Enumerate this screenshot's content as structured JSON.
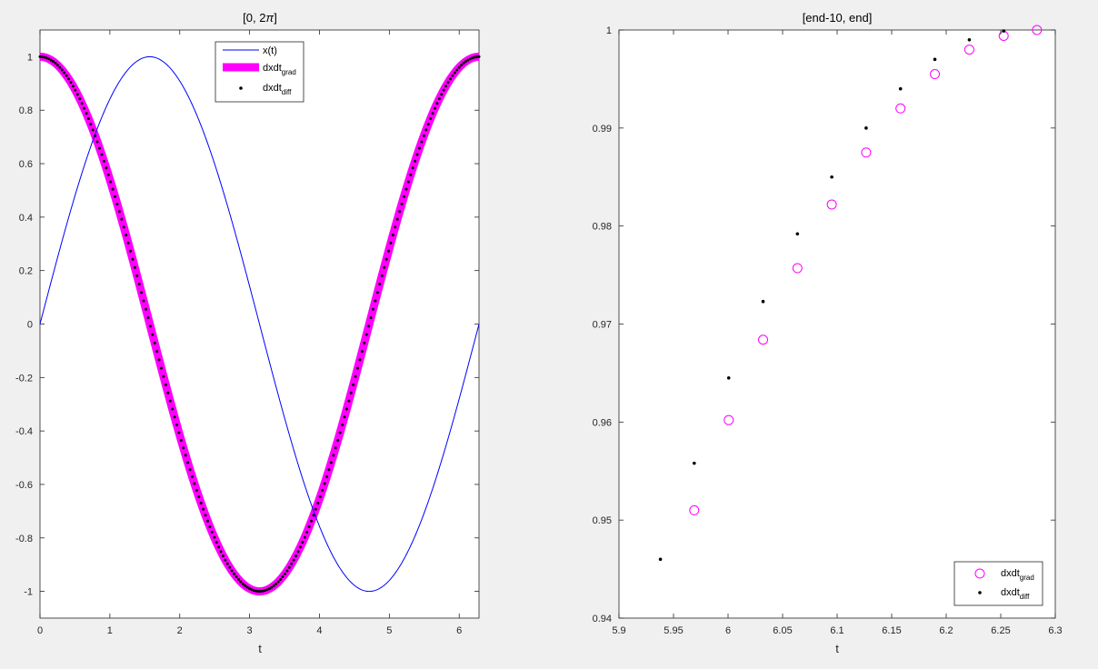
{
  "figure": {
    "background": "#f0f0f0"
  },
  "chart_data": [
    {
      "type": "line",
      "title": "[0, 2π]",
      "title_prefix": "[0, 2",
      "title_pi": "π",
      "title_suffix": "]",
      "xlabel": "t",
      "ylabel": "",
      "xlim": [
        0,
        6.2832
      ],
      "ylim": [
        -1.1,
        1.1
      ],
      "xticks": [
        0,
        1,
        2,
        3,
        4,
        5,
        6
      ],
      "yticks": [
        -1,
        -0.8,
        -0.6,
        -0.4,
        -0.2,
        0,
        0.2,
        0.4,
        0.6,
        0.8,
        1
      ],
      "ytick_labels": [
        "-1",
        "-0.8",
        "-0.6",
        "-0.4",
        "-0.2",
        "0",
        "0.2",
        "0.4",
        "0.6",
        "0.8",
        "1"
      ],
      "grid": false,
      "legend_position": "top-center",
      "series": [
        {
          "name": "x(t)",
          "function": "sin(t)",
          "style": "thin-line",
          "color": "#0000ff",
          "x": [
            0,
            0.785,
            1.571,
            2.356,
            3.142,
            3.927,
            4.712,
            5.498,
            6.283
          ],
          "y": [
            0,
            0.707,
            1,
            0.707,
            0,
            -0.707,
            -1,
            -0.707,
            0
          ]
        },
        {
          "name": "dxdt",
          "name_sub": "grad",
          "function": "cos(t)",
          "style": "thick-line",
          "color": "#ff00ff",
          "x": [
            0,
            0.785,
            1.571,
            2.356,
            3.142,
            3.927,
            4.712,
            5.498,
            6.283
          ],
          "y": [
            1,
            0.707,
            0,
            -0.707,
            -1,
            -0.707,
            0,
            0.707,
            1
          ]
        },
        {
          "name": "dxdt",
          "name_sub": "diff",
          "function": "cos(t)",
          "style": "dots",
          "color": "#000000",
          "x": [
            0,
            0.785,
            1.571,
            2.356,
            3.142,
            3.927,
            4.712,
            5.498,
            6.283
          ],
          "y": [
            1,
            0.707,
            0,
            -0.707,
            -1,
            -0.707,
            0,
            0.707,
            1
          ]
        }
      ]
    },
    {
      "type": "scatter",
      "title": "[end-10, end]",
      "xlabel": "t",
      "ylabel": "",
      "xlim": [
        5.9,
        6.3
      ],
      "ylim": [
        0.94,
        1.0
      ],
      "xticks": [
        5.9,
        5.95,
        6,
        6.05,
        6.1,
        6.15,
        6.2,
        6.25,
        6.3
      ],
      "xtick_labels": [
        "5.9",
        "5.95",
        "6",
        "6.05",
        "6.1",
        "6.15",
        "6.2",
        "6.25",
        "6.3"
      ],
      "yticks": [
        0.94,
        0.95,
        0.96,
        0.97,
        0.98,
        0.99,
        1
      ],
      "ytick_labels": [
        "0.94",
        "0.95",
        "0.96",
        "0.97",
        "0.98",
        "0.99",
        "1"
      ],
      "grid": false,
      "legend_position": "bottom-right",
      "series": [
        {
          "name": "dxdt",
          "name_sub": "grad",
          "marker": "open-circle",
          "color": "#ff00ff",
          "x": [
            5.969,
            6.0006,
            6.0321,
            6.0636,
            6.0951,
            6.1266,
            6.1581,
            6.1896,
            6.2212,
            6.2527,
            6.2832
          ],
          "y": [
            0.951,
            0.9602,
            0.9684,
            0.9757,
            0.9822,
            0.9875,
            0.992,
            0.9955,
            0.998,
            0.9994,
            1.0
          ]
        },
        {
          "name": "dxdt",
          "name_sub": "diff",
          "marker": "dot",
          "color": "#000000",
          "x": [
            5.938,
            5.969,
            6.0006,
            6.0321,
            6.0636,
            6.0951,
            6.1266,
            6.1581,
            6.1896,
            6.2212,
            6.2527
          ],
          "y": [
            0.946,
            0.9558,
            0.9645,
            0.9723,
            0.9792,
            0.985,
            0.99,
            0.994,
            0.997,
            0.999,
            0.9999
          ]
        }
      ]
    }
  ]
}
